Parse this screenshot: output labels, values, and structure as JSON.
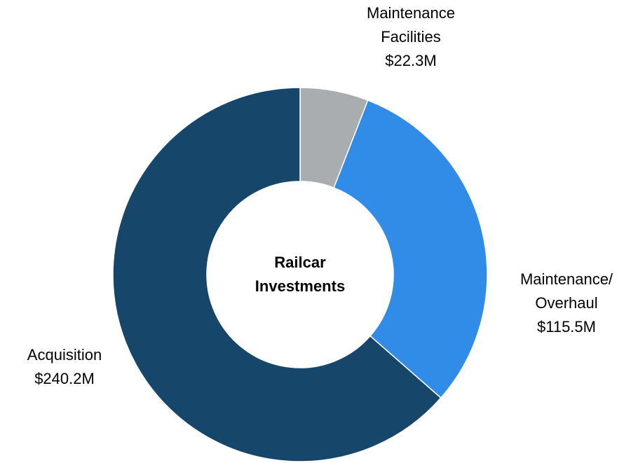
{
  "chart_data": {
    "type": "donut",
    "center_label": [
      "Railcar",
      "Investments"
    ],
    "categories": [
      [
        "Maintenance",
        "Facilities"
      ],
      [
        "Maintenance/",
        "Overhaul"
      ],
      [
        "Acquisition"
      ]
    ],
    "values": [
      22.3,
      115.5,
      240.2
    ],
    "value_labels": [
      "$22.3M",
      "$115.5M",
      "$240.2M"
    ],
    "colors": [
      "#a9adb0",
      "#318ce7",
      "#17466b"
    ]
  }
}
